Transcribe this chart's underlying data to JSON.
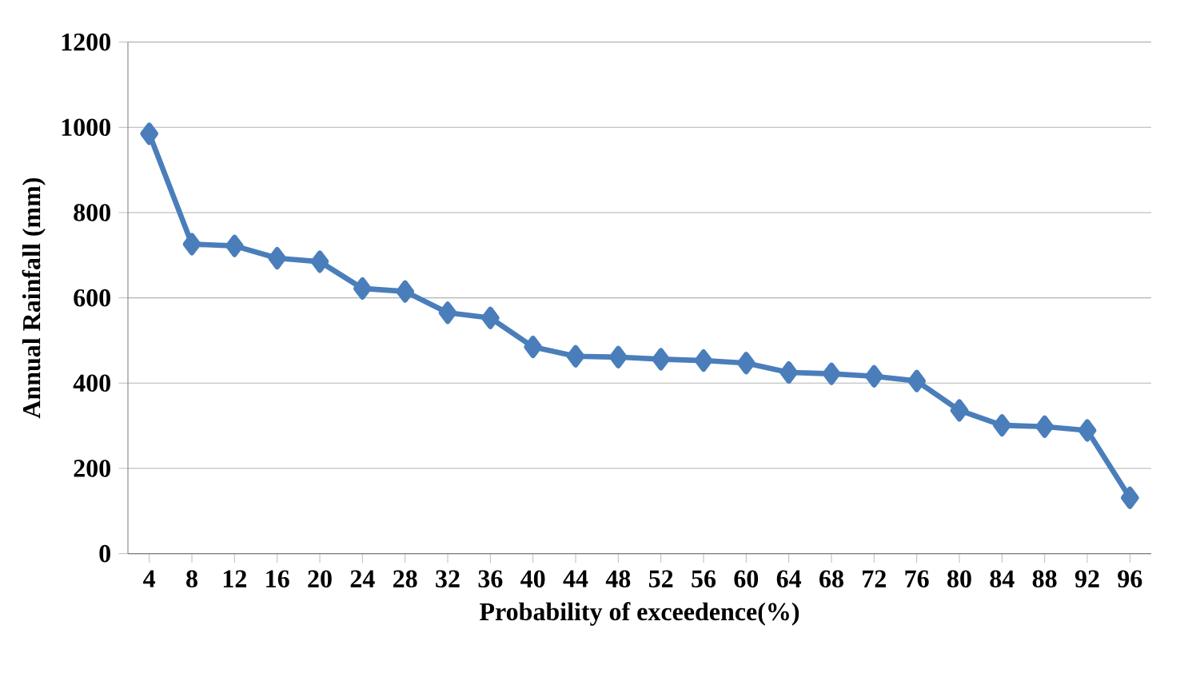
{
  "chart_data": {
    "type": "line",
    "xlabel": "Probability of exceedence(%)",
    "ylabel": "Annual Rainfall (mm)",
    "categories": [
      "4",
      "8",
      "12",
      "16",
      "20",
      "24",
      "28",
      "32",
      "36",
      "40",
      "44",
      "48",
      "52",
      "56",
      "60",
      "64",
      "68",
      "72",
      "76",
      "80",
      "84",
      "88",
      "92",
      "96"
    ],
    "series": [
      {
        "color": "#4a7ebb",
        "values": [
          985,
          726,
          722,
          693,
          685,
          622,
          615,
          565,
          553,
          485,
          463,
          461,
          456,
          453,
          447,
          425,
          422,
          416,
          405,
          336,
          301,
          298,
          289,
          131
        ]
      }
    ],
    "ylim": [
      0,
      1200
    ],
    "yticks": [
      0,
      200,
      400,
      600,
      800,
      1000,
      1200
    ],
    "grid": "y",
    "marker": "diamond",
    "line_style": "solid"
  }
}
